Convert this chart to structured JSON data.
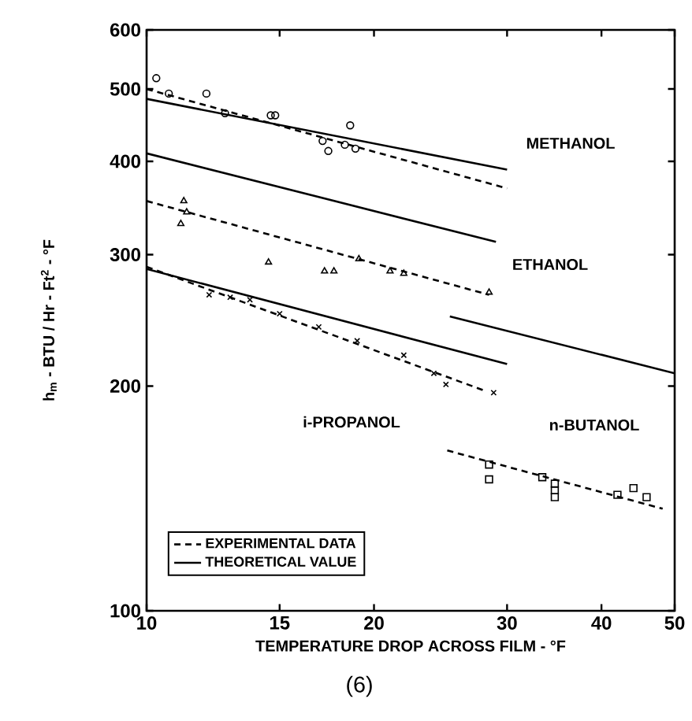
{
  "chart_data": {
    "type": "line",
    "xlabel": "TEMPERATURE DROP ACROSS FILM - °F",
    "ylabel": "h$_{m}$ - BTU / Hr - Ft$^{2}$ - °F",
    "log": "xy",
    "grid": false,
    "legend": "bottom left",
    "xlim": [
      10,
      50
    ],
    "ylim": [
      100,
      600
    ],
    "xticks": [
      10,
      15,
      20,
      30,
      40,
      50
    ],
    "yticks": [
      100,
      200,
      300,
      400,
      500,
      600
    ],
    "series": [
      {
        "name": "EXPERIMENTAL DATA",
        "type": "line",
        "line_style": "dashed",
        "marker": "none",
        "color": "#000000",
        "x": [
          10,
          30
        ],
        "values": [
          500,
          368
        ]
      },
      {
        "name": "THEORETICAL VALUE",
        "type": "line",
        "line_style": "solid",
        "marker": "none",
        "color": "#000000",
        "x": [
          10,
          30
        ],
        "values": [
          485,
          390
        ]
      },
      {
        "type": "scatter",
        "marker": "circle",
        "color": "#000000",
        "x": [
          10.3,
          10.7,
          12.0,
          12.7,
          14.6,
          14.8,
          17.1,
          17.4,
          18.6,
          18.3,
          18.9
        ],
        "values": [
          517,
          493,
          493,
          464,
          461,
          461,
          426,
          413,
          447,
          421,
          416
        ]
      },
      {
        "type": "line",
        "line_style": "solid",
        "marker": "none",
        "color": "#000000",
        "x": [
          10,
          29
        ],
        "values": [
          410,
          312
        ]
      },
      {
        "type": "line",
        "line_style": "dashed",
        "marker": "none",
        "color": "#000000",
        "x": [
          10,
          28.4
        ],
        "values": [
          354,
          265
        ]
      },
      {
        "type": "scatter",
        "marker": "triangle",
        "color": "#000000",
        "x": [
          11.2,
          11.3,
          11.1,
          14.5,
          17.2,
          17.7,
          19.1,
          21.0,
          21.9,
          28.4
        ],
        "values": [
          354,
          342,
          330,
          293,
          285,
          285,
          296,
          285,
          283,
          267
        ]
      },
      {
        "type": "line",
        "line_style": "solid",
        "marker": "none",
        "color": "#000000",
        "x": [
          10,
          30
        ],
        "values": [
          287,
          214
        ]
      },
      {
        "type": "line",
        "line_style": "dashed",
        "marker": "none",
        "color": "#000000",
        "x": [
          10,
          28.1
        ],
        "values": [
          289,
          197
        ]
      },
      {
        "type": "scatter",
        "marker": "cross",
        "color": "#000000",
        "x": [
          12.1,
          12.9,
          13.7,
          15.0,
          16.9,
          19.0,
          21.9,
          24.0,
          24.9,
          28.8
        ],
        "values": [
          265,
          263,
          261,
          250,
          240,
          230,
          220,
          208,
          201,
          196
        ]
      },
      {
        "type": "line",
        "line_style": "solid",
        "marker": "none",
        "color": "#000000",
        "x": [
          25.2,
          50
        ],
        "values": [
          248,
          208
        ]
      },
      {
        "type": "line",
        "line_style": "dashed",
        "marker": "none",
        "color": "#000000",
        "x": [
          25,
          48.2
        ],
        "values": [
          164,
          137
        ]
      },
      {
        "type": "scatter",
        "marker": "square",
        "color": "#000000",
        "x": [
          28.4,
          28.4,
          33.4,
          34.7,
          34.7,
          34.7,
          42.0,
          44.1,
          45.9
        ],
        "values": [
          157,
          150,
          151,
          148,
          145,
          142,
          143,
          146,
          142
        ]
      }
    ],
    "annotations": [
      "METHANOL",
      "ETHANOL",
      "i-PROPANOL",
      "n-BUTANOL",
      "(6)"
    ]
  }
}
